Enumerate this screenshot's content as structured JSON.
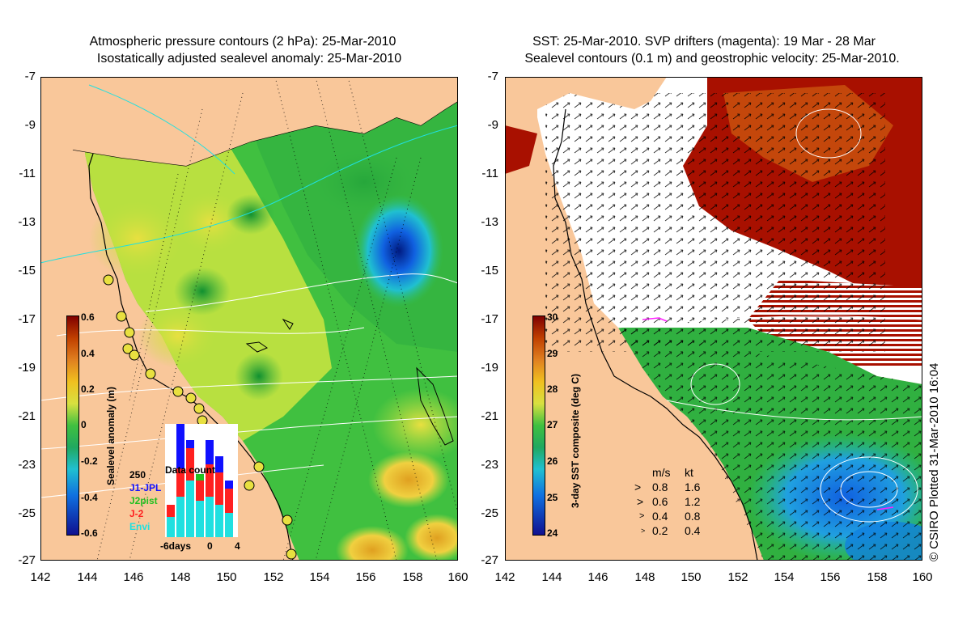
{
  "left_panel": {
    "title_line1": "Atmospheric pressure contours (2 hPa): 25-Mar-2010",
    "title_line2": "Isostatically adjusted sealevel anomaly: 25-Mar-2010",
    "y_ticks": [
      "-7",
      "-9",
      "-11",
      "-13",
      "-15",
      "-17",
      "-19",
      "-21",
      "-23",
      "-25",
      "-27"
    ],
    "x_ticks": [
      "142",
      "144",
      "146",
      "148",
      "150",
      "152",
      "154",
      "156",
      "158",
      "160"
    ],
    "colorbar": {
      "label": "Sealevel anomaly (m)",
      "ticks": [
        "0.6",
        "0.4",
        "0.2",
        "0",
        "-0.2",
        "-0.4",
        "-0.6"
      ],
      "range": [
        -0.6,
        0.6
      ]
    },
    "data_count": {
      "title": "Data count",
      "max_label": "250",
      "x_labels": [
        "-6days",
        "0",
        "4"
      ],
      "series": [
        {
          "name": "J1-JPL",
          "color": "#1010ff"
        },
        {
          "name": "J2pist",
          "color": "#20c020"
        },
        {
          "name": "J-2",
          "color": "#ff2020"
        },
        {
          "name": "Envi",
          "color": "#20e0e0"
        }
      ]
    }
  },
  "right_panel": {
    "title_line1": "SST: 25-Mar-2010. SVP drifters (magenta): 19 Mar - 28 Mar",
    "title_line2": "Sealevel contours (0.1 m) and geostrophic velocity: 25-Mar-2010.",
    "y_ticks": [
      "-7",
      "-9",
      "-11",
      "-13",
      "-15",
      "-17",
      "-19",
      "-21",
      "-23",
      "-25",
      "-27"
    ],
    "x_ticks": [
      "142",
      "144",
      "146",
      "148",
      "150",
      "152",
      "154",
      "156",
      "158",
      "160"
    ],
    "colorbar": {
      "label": "3-day SST composite (deg C)",
      "ticks": [
        "30",
        "29",
        "28",
        "27",
        "26",
        "25",
        "24"
      ],
      "range": [
        24,
        30
      ]
    },
    "vector_legend": {
      "header_ms": "m/s",
      "header_kt": "kt",
      "rows": [
        {
          "ms": "0.8",
          "kt": "1.6"
        },
        {
          "ms": "0.6",
          "kt": "1.2"
        },
        {
          "ms": "0.4",
          "kt": "0.8"
        },
        {
          "ms": "0.2",
          "kt": "0.4"
        }
      ]
    }
  },
  "credit": "© CSIRO Plotted 31-Mar-2010 16:04",
  "colors": {
    "land": "#f9c79a",
    "ocean_green": "#3fbf3f"
  }
}
